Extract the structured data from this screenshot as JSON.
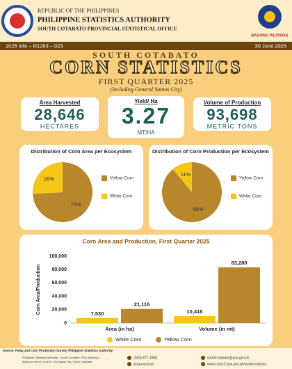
{
  "header": {
    "line1": "REPUBLIC OF THE PHILIPPINES",
    "line2": "PHILIPPINE STATISTICS AUTHORITY",
    "line3": "SOUTH COTABATO PROVINCIAL STATISTICAL OFFICE",
    "badge": "BAGONG PILIPINAS"
  },
  "infobar": {
    "code": "2025 Info – R1263 – 023",
    "date": "30 June 2025"
  },
  "title": {
    "place": "SOUTH COTABATO",
    "main": "CORN STATISTICS",
    "period": "FIRST QUARTER 2025",
    "note": "(Including General Santos City)"
  },
  "stats": [
    {
      "label": "Area Harvested",
      "value": "28,646",
      "unit": "HECTARES"
    },
    {
      "label": "Yield/ Ha",
      "value": "3.27",
      "unit": "MT/HA"
    },
    {
      "label": "Volume of Production",
      "value": "93,698",
      "unit": "METRIC TONS"
    }
  ],
  "chart_data": [
    {
      "type": "pie",
      "title": "Distribution of Corn Area per Ecosystem",
      "categories": [
        "Yellow Corn",
        "White Corn"
      ],
      "values": [
        74,
        26
      ],
      "value_labels": [
        "74%",
        "26%"
      ],
      "colors": [
        "#b8862b",
        "#f5c518"
      ]
    },
    {
      "type": "pie",
      "title": "Distribution of Corn Production per Ecosystem",
      "categories": [
        "Yellow Corn",
        "White Corn"
      ],
      "values": [
        89,
        11
      ],
      "value_labels": [
        "89%",
        "11%"
      ],
      "colors": [
        "#b8862b",
        "#f5c518"
      ]
    },
    {
      "type": "bar",
      "title": "Corn Area and Production, First Quarter 2025",
      "ylabel": "Corn Area/Production",
      "categories": [
        "Area (in ha)",
        "Volume (in mt)"
      ],
      "series": [
        {
          "name": "White Corn",
          "color": "#f5c518",
          "values": [
            7530,
            10418
          ],
          "value_labels": [
            "7,530",
            "10,418"
          ]
        },
        {
          "name": "Yellow Corn",
          "color": "#b8862b",
          "values": [
            21116,
            83280
          ],
          "value_labels": [
            "21,116",
            "83,280"
          ]
        }
      ],
      "ylim": [
        0,
        100000
      ],
      "yticks": [
        0,
        {
          "value": 20000,
          "label": "20,000"
        },
        {
          "value": 40000,
          "label": "40,000"
        },
        {
          "value": 60000,
          "label": "60,000"
        },
        {
          "value": 80000,
          "label": "80,000"
        },
        {
          "value": 100000,
          "label": "100,000"
        }
      ],
      "grid": false,
      "legend": "bottom"
    }
  ],
  "footer": {
    "source": "Source: Palay and Corn Production Survey, Philippine Statistics Authority",
    "address1": "Philippine Statistics Authority - South Cotabato, PSA Building 2,",
    "address2": "Bañanor Street, Zone B, Koronadal City, South Cotabato",
    "phone": "(083) 877-1860",
    "social": "/psasocotsso",
    "email": "southcotabato@psa.gov.ph",
    "web": "www.rsso12.psa.gov.ph/southcotabato"
  }
}
